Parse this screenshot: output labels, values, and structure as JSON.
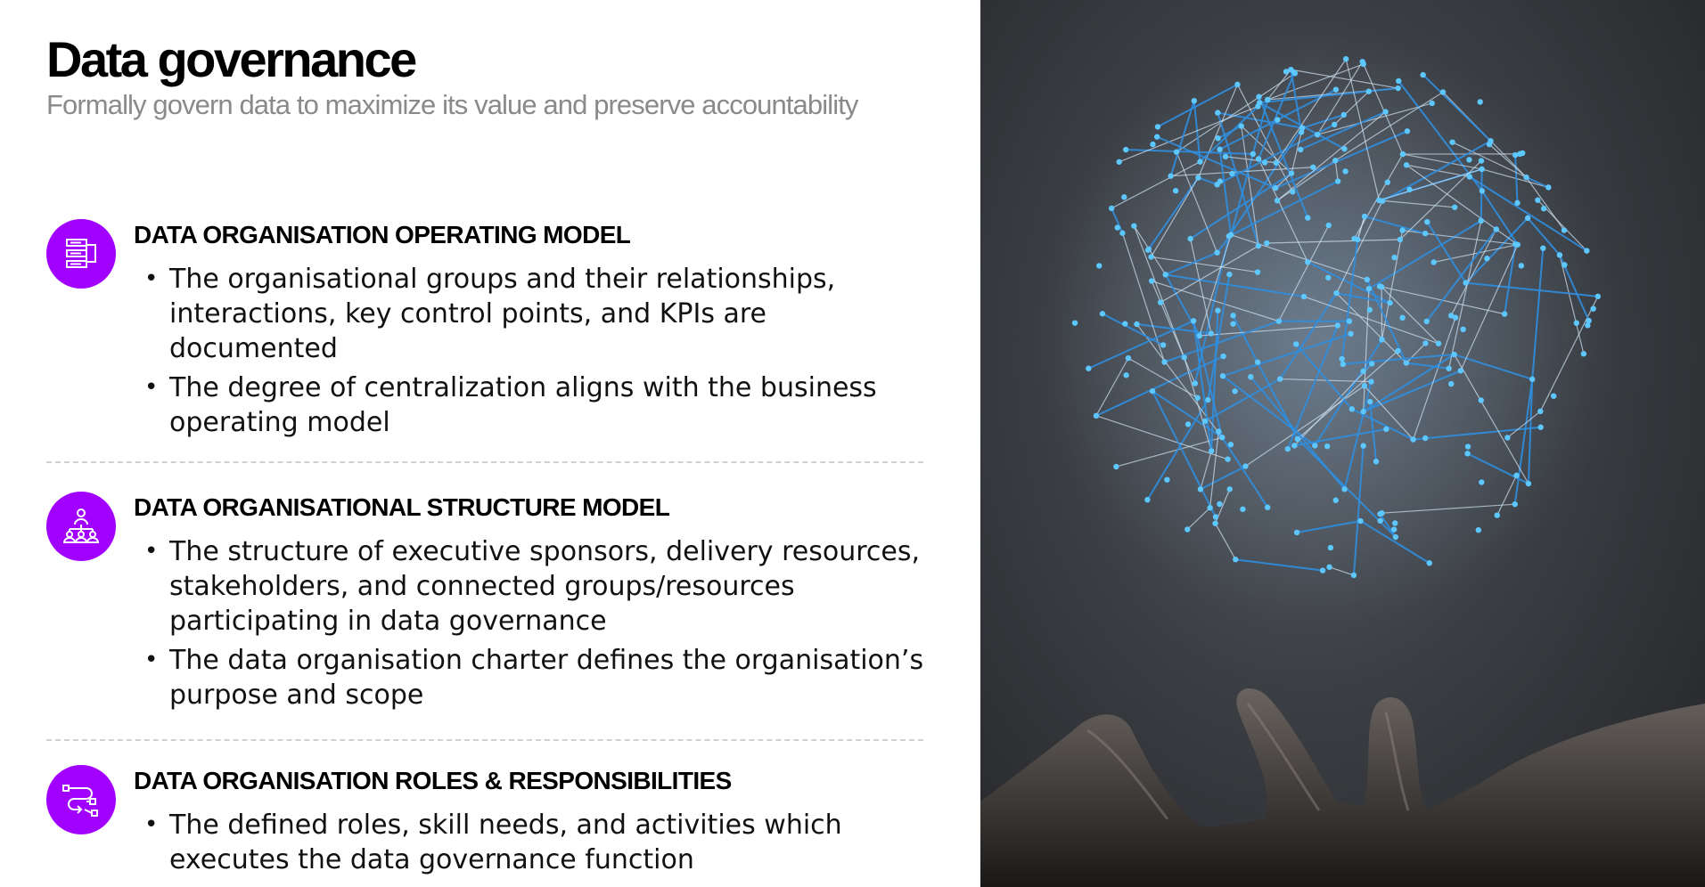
{
  "header": {
    "title": "Data governance",
    "subtitle": "Formally govern data to maximize its value and preserve accountability"
  },
  "sections": [
    {
      "heading": "DATA ORGANISATION OPERATING MODEL",
      "icon": "org-chart-icon",
      "bullets": [
        "The organisational groups and their relationships, interactions, key control points, and KPIs are documented",
        "The degree of centralization aligns with the business operating model"
      ]
    },
    {
      "heading": "DATA ORGANISATIONAL STRUCTURE MODEL",
      "icon": "people-hierarchy-icon",
      "bullets": [
        "The structure of executive sponsors, delivery resources, stakeholders, and connected groups/resources participating in data governance",
        "The data organisation charter defines the organisation’s purpose and scope"
      ]
    },
    {
      "heading": "DATA ORGANISATION ROLES & RESPONSIBILITIES",
      "icon": "workflow-icon",
      "bullets": [
        "The defined roles, skill needs, and activities which executes the data governance function"
      ]
    }
  ],
  "colors": {
    "accent": "#a100ff",
    "subtitle": "#8a8a8a",
    "network_line": "#2f8fe0",
    "network_node": "#5cc8ff"
  },
  "image": {
    "description_icon": "network-sphere-over-hand-photo"
  }
}
